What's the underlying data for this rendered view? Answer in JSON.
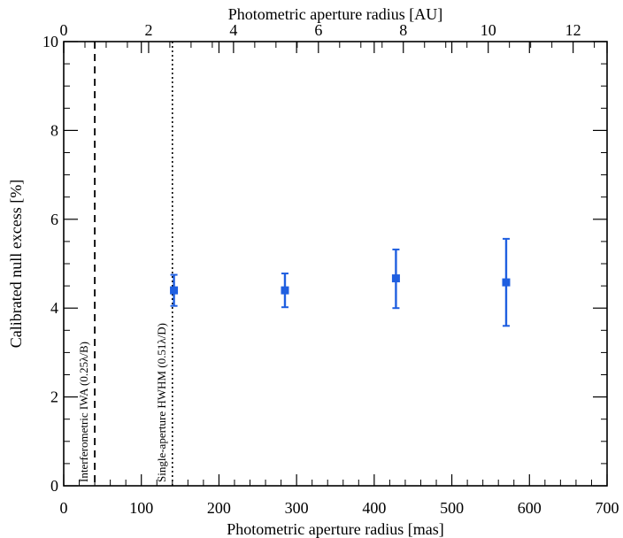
{
  "chart_data": {
    "type": "scatter",
    "xlabel": "Photometric aperture radius [mas]",
    "x2label": "Photometric aperture radius [AU]",
    "ylabel": "Calibrated null excess [%]",
    "xlim": [
      0,
      700
    ],
    "x2lim": [
      0,
      12.8
    ],
    "ylim": [
      0,
      10
    ],
    "xticks": [
      0,
      100,
      200,
      300,
      400,
      500,
      600,
      700
    ],
    "x2ticks": [
      0,
      2,
      4,
      6,
      8,
      10,
      12
    ],
    "yticks": [
      0,
      2,
      4,
      6,
      8,
      10
    ],
    "grid": false,
    "series_color": "#1f5fe0",
    "points": [
      {
        "x": 142,
        "y": 4.4,
        "err_low": 4.05,
        "err_high": 4.75
      },
      {
        "x": 285,
        "y": 4.4,
        "err_low": 4.02,
        "err_high": 4.78
      },
      {
        "x": 428,
        "y": 4.67,
        "err_low": 4.0,
        "err_high": 5.32
      },
      {
        "x": 570,
        "y": 4.58,
        "err_low": 3.6,
        "err_high": 5.56
      }
    ],
    "vlines": [
      {
        "x": 40,
        "style": "dashed",
        "label": "Interferometric IWA (0.25λ/B)"
      },
      {
        "x": 140,
        "style": "dotted",
        "label": "Single-aperture HWHM (0.51λ/D)"
      }
    ]
  }
}
